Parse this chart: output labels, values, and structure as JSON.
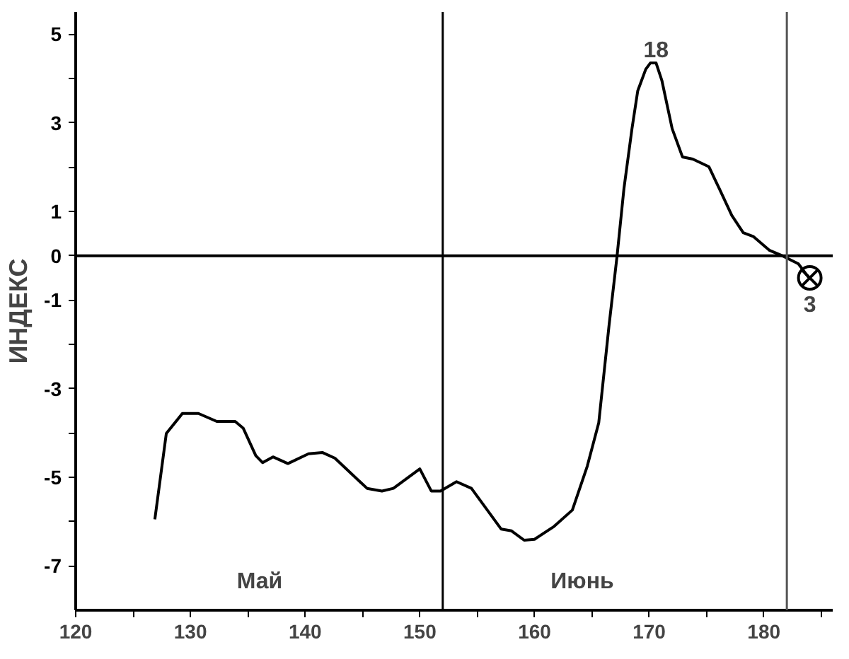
{
  "chart_data": {
    "type": "line",
    "ylabel": "ИНДЕКС",
    "xlim": [
      120,
      186
    ],
    "ylim": [
      -8,
      5.5
    ],
    "xticks": [
      120,
      {
        "value": 125,
        "label": null
      },
      130,
      {
        "value": 135,
        "label": null
      },
      140,
      {
        "value": 145,
        "label": null
      },
      150,
      {
        "value": 155,
        "label": null
      },
      160,
      {
        "value": 165,
        "label": null
      },
      170,
      {
        "value": 175,
        "label": null
      },
      180,
      {
        "value": 185,
        "label": null
      }
    ],
    "yticks": [
      -7,
      {
        "value": -6,
        "label": null
      },
      -5,
      {
        "value": -4,
        "label": null
      },
      -3,
      {
        "value": -2,
        "label": null
      },
      -1,
      0,
      1,
      {
        "value": 2,
        "label": null
      },
      3,
      {
        "value": 4,
        "label": null
      },
      5
    ],
    "grid": false,
    "line_style": "solid",
    "series": [
      {
        "color": "#000000",
        "marker": "none",
        "x": [
          126.9,
          127.9,
          129.3,
          130.7,
          132.3,
          133.9,
          134.6,
          135.7,
          136.3,
          137.2,
          138.5,
          140.3,
          141.5,
          142.6,
          145.4,
          146.7,
          147.7,
          150.0,
          151.0,
          151.8,
          153.2,
          154.5,
          157.1,
          158.0,
          159.1,
          160.0,
          161.7,
          163.3,
          164.6,
          165.6,
          166.5,
          167.2,
          167.8,
          168.5,
          169.0,
          169.7,
          170.1,
          170.6,
          171.1,
          172.0,
          172.9,
          173.8,
          175.2,
          176.1,
          177.2,
          178.2,
          179.1,
          180.5,
          181.6,
          183.0,
          183.9
        ],
        "values": [
          -5.95,
          -4.01,
          -3.56,
          -3.56,
          -3.74,
          -3.74,
          -3.89,
          -4.51,
          -4.67,
          -4.54,
          -4.69,
          -4.47,
          -4.44,
          -4.57,
          -5.25,
          -5.31,
          -5.25,
          -4.81,
          -5.31,
          -5.31,
          -5.1,
          -5.25,
          -6.17,
          -6.21,
          -6.42,
          -6.4,
          -6.11,
          -5.74,
          -4.75,
          -3.77,
          -1.57,
          0,
          1.52,
          2.87,
          3.72,
          4.21,
          4.35,
          4.35,
          3.96,
          2.87,
          2.23,
          2.18,
          2.01,
          1.52,
          0.91,
          0.52,
          0.43,
          0.12,
          0,
          -0.18,
          -0.49
        ]
      },
      {
        "type": "scatter",
        "color": "#000000",
        "marker": "cross",
        "x": [
          184
        ],
        "values": [
          -0.5
        ]
      }
    ],
    "ref_lines": [
      {
        "axis": "y",
        "value": 0
      },
      {
        "axis": "x",
        "value": 152
      },
      {
        "axis": "x",
        "value": 182,
        "color": "#555555"
      }
    ],
    "annotations": [
      {
        "text": "18",
        "x": 170.6,
        "y": 4.35
      },
      {
        "text": "3",
        "x": 184,
        "y": -0.5
      },
      "Май",
      "Июнь"
    ]
  }
}
